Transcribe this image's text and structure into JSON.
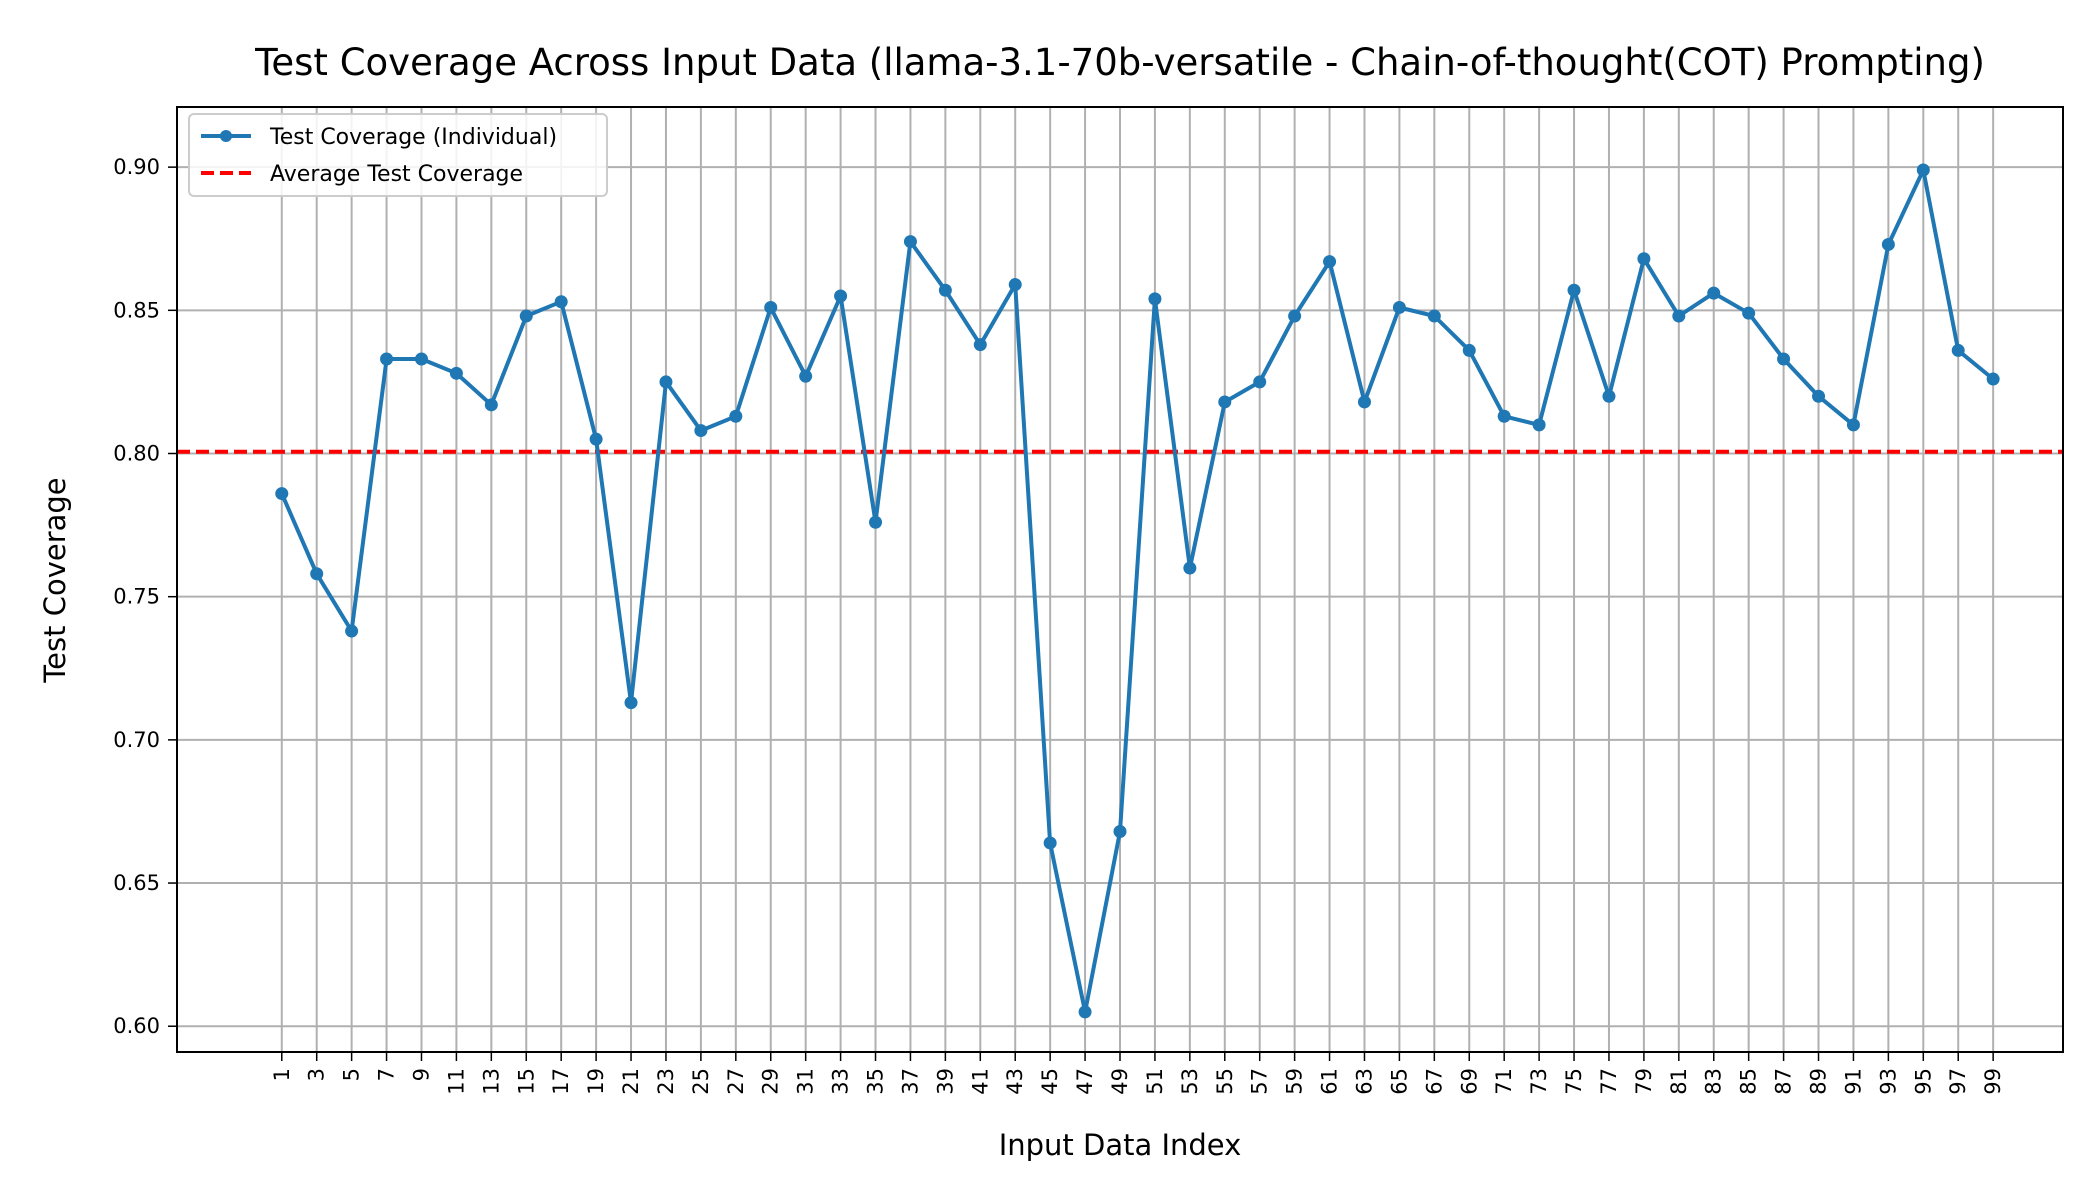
{
  "chart_data": {
    "type": "line",
    "title": "Test Coverage Across Input Data (llama-3.1-70b-versatile - Chain-of-thought(COT) Prompting)",
    "xlabel": "Input Data Index",
    "ylabel": "Test Coverage",
    "xlim": [
      -5,
      103
    ],
    "ylim": [
      0.591,
      0.921
    ],
    "grid": true,
    "legend_position": "upper-left",
    "x_ticks": [
      1,
      3,
      5,
      7,
      9,
      11,
      13,
      15,
      17,
      19,
      21,
      23,
      25,
      27,
      29,
      31,
      33,
      35,
      37,
      39,
      41,
      43,
      45,
      47,
      49,
      51,
      53,
      55,
      57,
      59,
      61,
      63,
      65,
      67,
      69,
      71,
      73,
      75,
      77,
      79,
      81,
      83,
      85,
      87,
      89,
      91,
      93,
      95,
      97,
      99
    ],
    "x_tick_labels": [
      "1",
      "3",
      "5",
      "7",
      "9",
      "11",
      "13",
      "15",
      "17",
      "19",
      "21",
      "23",
      "25",
      "27",
      "29",
      "31",
      "33",
      "35",
      "37",
      "39",
      "41",
      "43",
      "45",
      "47",
      "49",
      "51",
      "53",
      "55",
      "57",
      "59",
      "61",
      "63",
      "65",
      "67",
      "69",
      "71",
      "73",
      "75",
      "77",
      "79",
      "81",
      "83",
      "85",
      "87",
      "89",
      "91",
      "93",
      "95",
      "97",
      "99"
    ],
    "y_ticks": [
      0.6,
      0.65,
      0.7,
      0.75,
      0.8,
      0.85,
      0.9
    ],
    "y_tick_labels": [
      "0.60",
      "0.65",
      "0.70",
      "0.75",
      "0.80",
      "0.85",
      "0.90"
    ],
    "series": [
      {
        "name": "Test Coverage (Individual)",
        "color": "#1f77b4",
        "style": "solid-line-with-dots",
        "x": [
          1,
          3,
          5,
          7,
          9,
          11,
          13,
          15,
          17,
          19,
          21,
          23,
          25,
          27,
          29,
          31,
          33,
          35,
          37,
          39,
          41,
          43,
          45,
          47,
          49,
          51,
          53,
          55,
          57,
          59,
          61,
          63,
          65,
          67,
          69,
          71,
          73,
          75,
          77,
          79,
          81,
          83,
          85,
          87,
          89,
          91,
          93,
          95,
          97,
          99
        ],
        "y": [
          0.786,
          0.758,
          0.738,
          0.833,
          0.833,
          0.828,
          0.817,
          0.848,
          0.853,
          0.805,
          0.713,
          0.825,
          0.808,
          0.813,
          0.851,
          0.827,
          0.855,
          0.776,
          0.874,
          0.857,
          0.838,
          0.859,
          0.664,
          0.605,
          0.668,
          0.854,
          0.76,
          0.818,
          0.825,
          0.848,
          0.867,
          0.818,
          0.851,
          0.848,
          0.836,
          0.813,
          0.81,
          0.857,
          0.82,
          0.868,
          0.848,
          0.856,
          0.849,
          0.833,
          0.82,
          0.81,
          0.873,
          0.899,
          0.836,
          0.826
        ]
      },
      {
        "name": "Average Test Coverage",
        "color": "#ff0000",
        "style": "dashed-horizontal-line",
        "y": 0.8006
      }
    ]
  }
}
